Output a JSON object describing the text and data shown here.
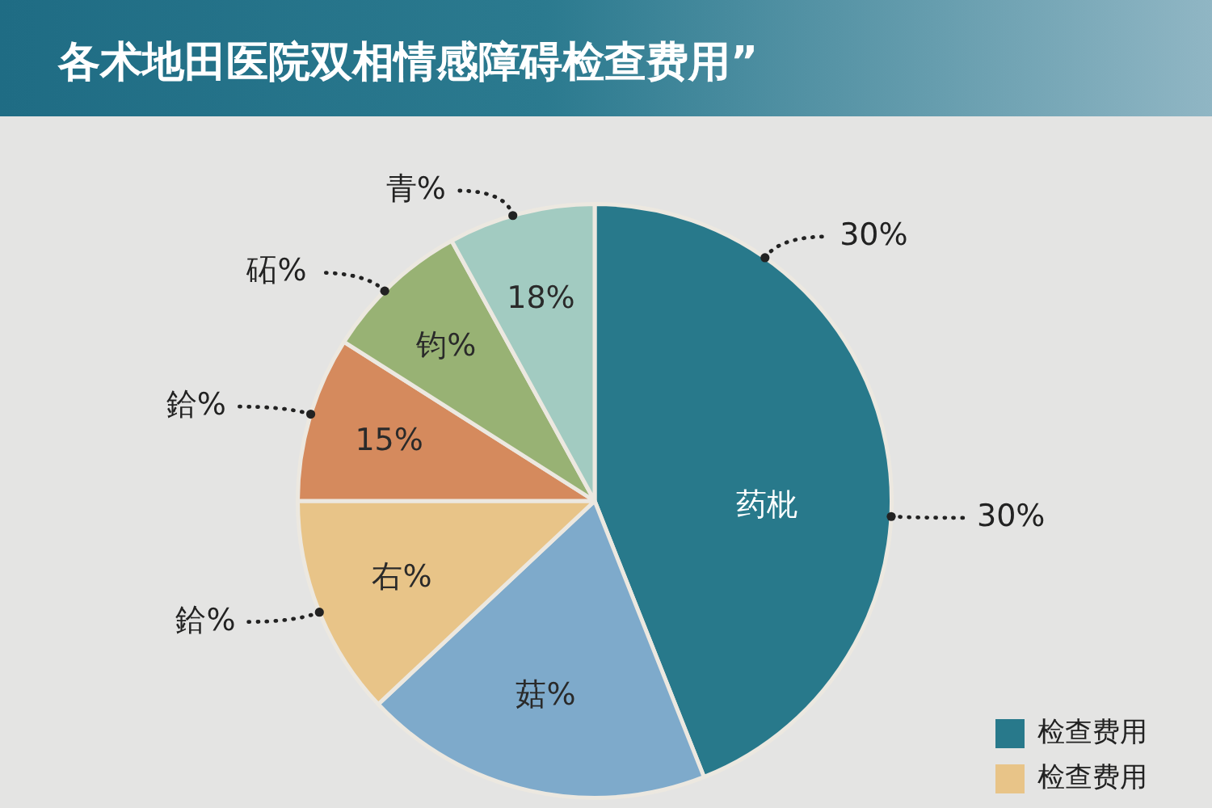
{
  "chart_data": {
    "type": "pie",
    "title": "各术地田医院双相情感障碍检查费用”",
    "categories": [
      "检查费用",
      null,
      "检查费用",
      null,
      null,
      null
    ],
    "values": [
      44,
      19,
      12,
      9,
      8,
      8
    ],
    "colors": [
      "#28798b",
      "#7eaacb",
      "#e8c488",
      "#d58a5d",
      "#98b274",
      "#a2cbc1"
    ],
    "annotations": [
      "药枇",
      "菇%",
      "右%",
      "15%",
      "钧%",
      "18%",
      "30%",
      "30%",
      "鉿%",
      "鉿%",
      "砳%",
      "青%"
    ],
    "legend": "bottom right"
  }
}
